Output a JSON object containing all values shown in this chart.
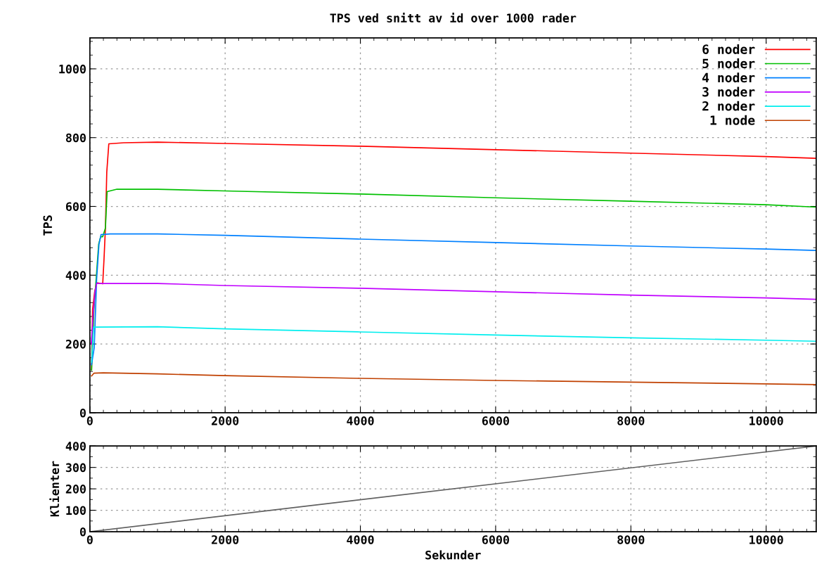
{
  "chart_data": [
    {
      "type": "line",
      "title": "TPS ved snitt av id over 1000 rader",
      "ylabel": "TPS",
      "xlim": [
        0,
        10740
      ],
      "ylim": [
        0,
        1090
      ],
      "xticks": [
        0,
        2000,
        4000,
        6000,
        8000,
        10000
      ],
      "yticks": [
        0,
        200,
        400,
        600,
        800,
        1000
      ],
      "grid": true,
      "legend": "top right",
      "line_style": "solid",
      "marker": "none",
      "series": [
        {
          "name": "6 noder",
          "color": "#ff0000",
          "x": [
            25,
            40,
            70,
            100,
            190,
            210,
            230,
            250,
            280,
            500,
            1000,
            2000,
            4000,
            6000,
            8000,
            10000,
            10740
          ],
          "values": [
            124,
            300,
            350,
            378,
            375,
            450,
            537,
            700,
            782,
            785,
            787,
            783,
            775,
            765,
            755,
            745,
            740
          ]
        },
        {
          "name": "5 noder",
          "color": "#00c000",
          "x": [
            25,
            60,
            95,
            130,
            160,
            190,
            230,
            255,
            400,
            1000,
            2000,
            4000,
            6000,
            8000,
            10000,
            10740
          ],
          "values": [
            124,
            300,
            395,
            490,
            512,
            512,
            537,
            643,
            650,
            650,
            645,
            636,
            625,
            615,
            605,
            598
          ]
        },
        {
          "name": "4 noder",
          "color": "#0080ff",
          "x": [
            25,
            65,
            100,
            135,
            165,
            300,
            1000,
            2000,
            4000,
            6000,
            8000,
            10000,
            10740
          ],
          "values": [
            140,
            190,
            388,
            490,
            518,
            520,
            520,
            516,
            505,
            495,
            485,
            476,
            472
          ]
        },
        {
          "name": "3 noder",
          "color": "#c000ff",
          "x": [
            20,
            55,
            75,
            100,
            1000,
            2000,
            4000,
            6000,
            8000,
            10000,
            10740
          ],
          "values": [
            200,
            300,
            350,
            376,
            376,
            370,
            362,
            352,
            342,
            334,
            330
          ]
        },
        {
          "name": "2 noder",
          "color": "#00eeee",
          "x": [
            25,
            55,
            1000,
            2000,
            4000,
            6000,
            8000,
            10000,
            10740
          ],
          "values": [
            147,
            249,
            250,
            244,
            235,
            226,
            218,
            211,
            208
          ]
        },
        {
          "name": "1 node",
          "color": "#c04000",
          "x": [
            25,
            60,
            200,
            1000,
            2000,
            4000,
            6000,
            8000,
            10000,
            10740
          ],
          "values": [
            107,
            115,
            116,
            113,
            108,
            100,
            94,
            89,
            84,
            82
          ]
        }
      ]
    },
    {
      "type": "line",
      "xlabel": "Sekunder",
      "ylabel": "Klienter",
      "xlim": [
        0,
        10740
      ],
      "ylim": [
        0,
        400
      ],
      "xticks": [
        0,
        2000,
        4000,
        6000,
        8000,
        10000
      ],
      "yticks": [
        0,
        100,
        200,
        300,
        400
      ],
      "grid": true,
      "line_style": "solid",
      "marker": "none",
      "series": [
        {
          "color": "#606060",
          "x": [
            0,
            10740
          ],
          "values": [
            0,
            400
          ]
        }
      ]
    }
  ]
}
